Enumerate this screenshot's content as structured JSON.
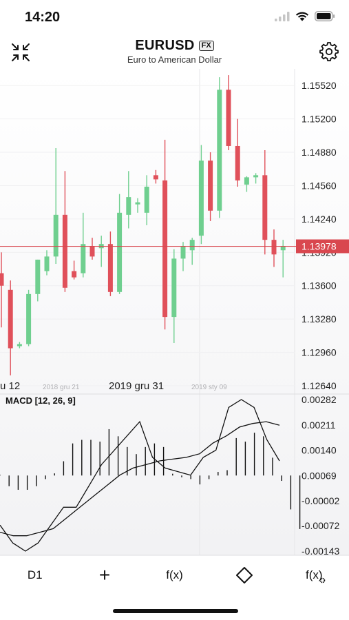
{
  "status": {
    "time": "14:20"
  },
  "header": {
    "symbol": "EURUSD",
    "badge": "FX",
    "subtitle": "Euro to American Dollar"
  },
  "icons": {
    "collapse": "collapse-arrows-icon",
    "settings": "gear-icon",
    "signal": "signal-icon",
    "wifi": "wifi-icon",
    "battery": "battery-icon"
  },
  "colors": {
    "bull": "#6fcf8f",
    "bear": "#e0505a",
    "price_line": "#d9474f",
    "line": "#111111"
  },
  "chart_data": [
    {
      "type": "candlestick",
      "y_ticks": [
        "1.15520",
        "1.15200",
        "1.14880",
        "1.14560",
        "1.14240",
        "1.13920",
        "1.13600",
        "1.13280",
        "1.12960",
        "1.12640"
      ],
      "ylim": [
        1.1264,
        1.1568
      ],
      "current_price": "1.13978",
      "x_labels": [
        {
          "text": "u 12",
          "small": false
        },
        {
          "text": "2018 gru 21",
          "small": true
        },
        {
          "text": "2019 gru 31",
          "small": false
        },
        {
          "text": "2019 sty 09",
          "small": true
        }
      ],
      "candles": [
        {
          "o": 1.1372,
          "h": 1.1392,
          "l": 1.132,
          "c": 1.136
        },
        {
          "o": 1.1356,
          "h": 1.1365,
          "l": 1.1274,
          "c": 1.13
        },
        {
          "o": 1.1302,
          "h": 1.1306,
          "l": 1.13,
          "c": 1.1304
        },
        {
          "o": 1.1304,
          "h": 1.1356,
          "l": 1.1302,
          "c": 1.1352
        },
        {
          "o": 1.1352,
          "h": 1.1385,
          "l": 1.1345,
          "c": 1.1385
        },
        {
          "o": 1.1374,
          "h": 1.1394,
          "l": 1.137,
          "c": 1.1388
        },
        {
          "o": 1.1388,
          "h": 1.1492,
          "l": 1.1381,
          "c": 1.1428
        },
        {
          "o": 1.1428,
          "h": 1.147,
          "l": 1.1354,
          "c": 1.1358
        },
        {
          "o": 1.1374,
          "h": 1.1384,
          "l": 1.1366,
          "c": 1.1368
        },
        {
          "o": 1.1372,
          "h": 1.143,
          "l": 1.1368,
          "c": 1.14
        },
        {
          "o": 1.1398,
          "h": 1.1406,
          "l": 1.1385,
          "c": 1.1388
        },
        {
          "o": 1.1396,
          "h": 1.1408,
          "l": 1.1378,
          "c": 1.14
        },
        {
          "o": 1.14,
          "h": 1.1412,
          "l": 1.135,
          "c": 1.1354
        },
        {
          "o": 1.1354,
          "h": 1.1448,
          "l": 1.1352,
          "c": 1.143
        },
        {
          "o": 1.1428,
          "h": 1.147,
          "l": 1.1415,
          "c": 1.1445
        },
        {
          "o": 1.1438,
          "h": 1.1444,
          "l": 1.143,
          "c": 1.144
        },
        {
          "o": 1.143,
          "h": 1.1466,
          "l": 1.1418,
          "c": 1.1455
        },
        {
          "o": 1.1466,
          "h": 1.1471,
          "l": 1.1458,
          "c": 1.1462
        },
        {
          "o": 1.1461,
          "h": 1.15,
          "l": 1.1318,
          "c": 1.133
        },
        {
          "o": 1.133,
          "h": 1.1395,
          "l": 1.1305,
          "c": 1.1386
        },
        {
          "o": 1.1386,
          "h": 1.1402,
          "l": 1.1374,
          "c": 1.1398
        },
        {
          "o": 1.1394,
          "h": 1.1406,
          "l": 1.138,
          "c": 1.1404
        },
        {
          "o": 1.1408,
          "h": 1.1495,
          "l": 1.14,
          "c": 1.148
        },
        {
          "o": 1.148,
          "h": 1.1488,
          "l": 1.1422,
          "c": 1.1432
        },
        {
          "o": 1.1432,
          "h": 1.156,
          "l": 1.1425,
          "c": 1.1548
        },
        {
          "o": 1.1548,
          "h": 1.1562,
          "l": 1.149,
          "c": 1.1494
        },
        {
          "o": 1.1494,
          "h": 1.152,
          "l": 1.1455,
          "c": 1.1461
        },
        {
          "o": 1.1457,
          "h": 1.1465,
          "l": 1.145,
          "c": 1.1464
        },
        {
          "o": 1.1464,
          "h": 1.1468,
          "l": 1.1458,
          "c": 1.1466
        },
        {
          "o": 1.1466,
          "h": 1.149,
          "l": 1.139,
          "c": 1.1404
        },
        {
          "o": 1.1404,
          "h": 1.1414,
          "l": 1.1378,
          "c": 1.139
        },
        {
          "o": 1.1394,
          "h": 1.1404,
          "l": 1.1368,
          "c": 1.1398
        }
      ]
    },
    {
      "type": "macd",
      "title": "MACD [12, 26, 9]",
      "y_ticks": [
        "0.00282",
        "0.00211",
        "0.00140",
        "0.00069",
        "-0.00002",
        "-0.00072",
        "-0.00143"
      ],
      "ylim": [
        -0.00143,
        0.00282
      ],
      "histogram": [
        2e-05,
        -0.0003,
        -0.0004,
        -0.0004,
        -0.0003,
        -0.0001,
        6e-05,
        0.0004,
        0.0009,
        0.001,
        0.001,
        0.00095,
        0.0013,
        0.0011,
        0.0008,
        0.0006,
        0.0008,
        0.0009,
        0.0008,
        5e-05,
        -5e-05,
        -0.0001,
        -0.00025,
        -0.0001,
        0.0001,
        0.00015,
        0.00105,
        0.00095,
        0.0012,
        0.0011,
        0.0005,
        -0.00015,
        -0.00095,
        -0.0015
      ],
      "macd_line": [
        -0.0007,
        -0.0012,
        -0.00143,
        -0.0012,
        -0.0007,
        -0.0002,
        -0.0002,
        0.0004,
        0.001,
        0.0014,
        0.0018,
        0.0022,
        0.0012,
        0.0009,
        0.0008,
        0.0007,
        0.0012,
        0.0014,
        0.0026,
        0.00282,
        0.0026,
        0.0017,
        0.0011
      ],
      "signal_line": [
        -0.0009,
        -0.001,
        -0.001,
        -0.0009,
        -0.0008,
        -0.0005,
        -0.0002,
        0.0001,
        0.0004,
        0.0007,
        0.0009,
        0.001,
        0.0011,
        0.00115,
        0.0012,
        0.0013,
        0.0016,
        0.0018,
        0.00205,
        0.00215,
        0.0022,
        0.0021
      ]
    }
  ],
  "toolbar": {
    "timeframe": "D1",
    "add_label": "+",
    "indicator_label": "f(x)",
    "drawing_icon": "diamond-icon",
    "indicator_settings_label": "f(x)"
  }
}
